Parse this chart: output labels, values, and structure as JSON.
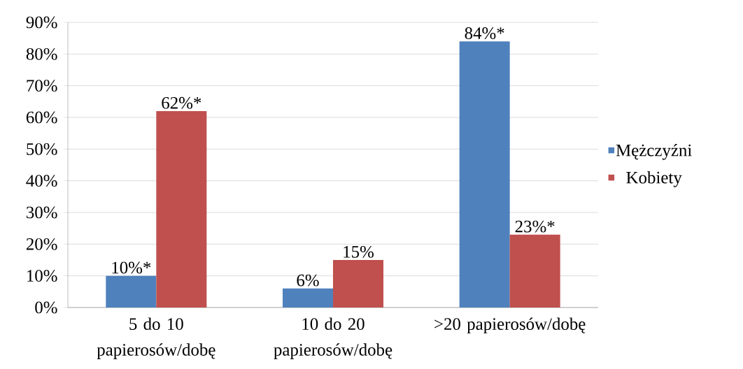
{
  "chart_data": {
    "type": "bar",
    "categories": [
      "5 do 10 papierosów/dobę",
      "10 do 20 papierosów/dobę",
      ">20 papierosów/dobę"
    ],
    "series": [
      {
        "name": "Mężczyźni",
        "color": "#4f81bd",
        "values": [
          10,
          6,
          84
        ],
        "value_labels": [
          "10%*",
          "6%",
          "84%*"
        ]
      },
      {
        "name": "Kobiety",
        "color": "#c0504d",
        "values": [
          62,
          15,
          23
        ],
        "value_labels": [
          "62%*",
          "15%",
          "23%*"
        ]
      }
    ],
    "ylim": [
      0,
      90
    ],
    "yticks": [
      {
        "value": 0,
        "label": "0%"
      },
      {
        "value": 10,
        "label": "10%"
      },
      {
        "value": 20,
        "label": "20%"
      },
      {
        "value": 30,
        "label": "30%"
      },
      {
        "value": 40,
        "label": "40%"
      },
      {
        "value": 50,
        "label": "50%"
      },
      {
        "value": 60,
        "label": "60%"
      },
      {
        "value": 70,
        "label": "70%"
      },
      {
        "value": 80,
        "label": "80%"
      },
      {
        "value": 90,
        "label": "90%"
      }
    ],
    "grid": "y",
    "legend": "right"
  }
}
